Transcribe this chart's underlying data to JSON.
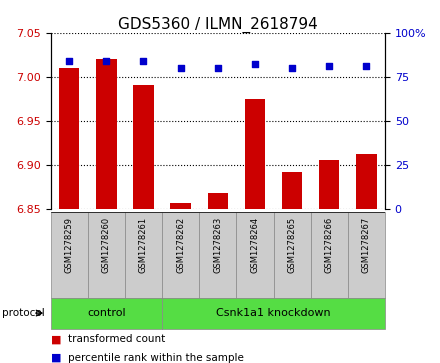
{
  "title": "GDS5360 / ILMN_2618794",
  "samples": [
    "GSM1278259",
    "GSM1278260",
    "GSM1278261",
    "GSM1278262",
    "GSM1278263",
    "GSM1278264",
    "GSM1278265",
    "GSM1278266",
    "GSM1278267"
  ],
  "transformed_counts": [
    7.01,
    7.02,
    6.99,
    6.856,
    6.868,
    6.975,
    6.892,
    6.905,
    6.912
  ],
  "percentile_ranks": [
    84,
    84,
    84,
    80,
    80,
    82,
    80,
    81,
    81
  ],
  "ylim_left": [
    6.85,
    7.05
  ],
  "ylim_right": [
    0,
    100
  ],
  "yticks_left": [
    6.85,
    6.9,
    6.95,
    7.0,
    7.05
  ],
  "yticks_right": [
    0,
    25,
    50,
    75,
    100
  ],
  "ytick_labels_right": [
    "0",
    "25",
    "50",
    "75",
    "100%"
  ],
  "bar_color": "#cc0000",
  "dot_color": "#0000cc",
  "groups": [
    {
      "label": "control",
      "start": 0,
      "end": 3
    },
    {
      "label": "Csnk1a1 knockdown",
      "start": 3,
      "end": 9
    }
  ],
  "group_color": "#55dd44",
  "protocol_label": "protocol",
  "legend_bar_label": "transformed count",
  "legend_dot_label": "percentile rank within the sample",
  "background_color": "#ffffff",
  "label_area_bg": "#cccccc",
  "title_fontsize": 11,
  "tick_fontsize": 8,
  "sample_fontsize": 6,
  "group_fontsize": 8,
  "legend_fontsize": 7.5
}
